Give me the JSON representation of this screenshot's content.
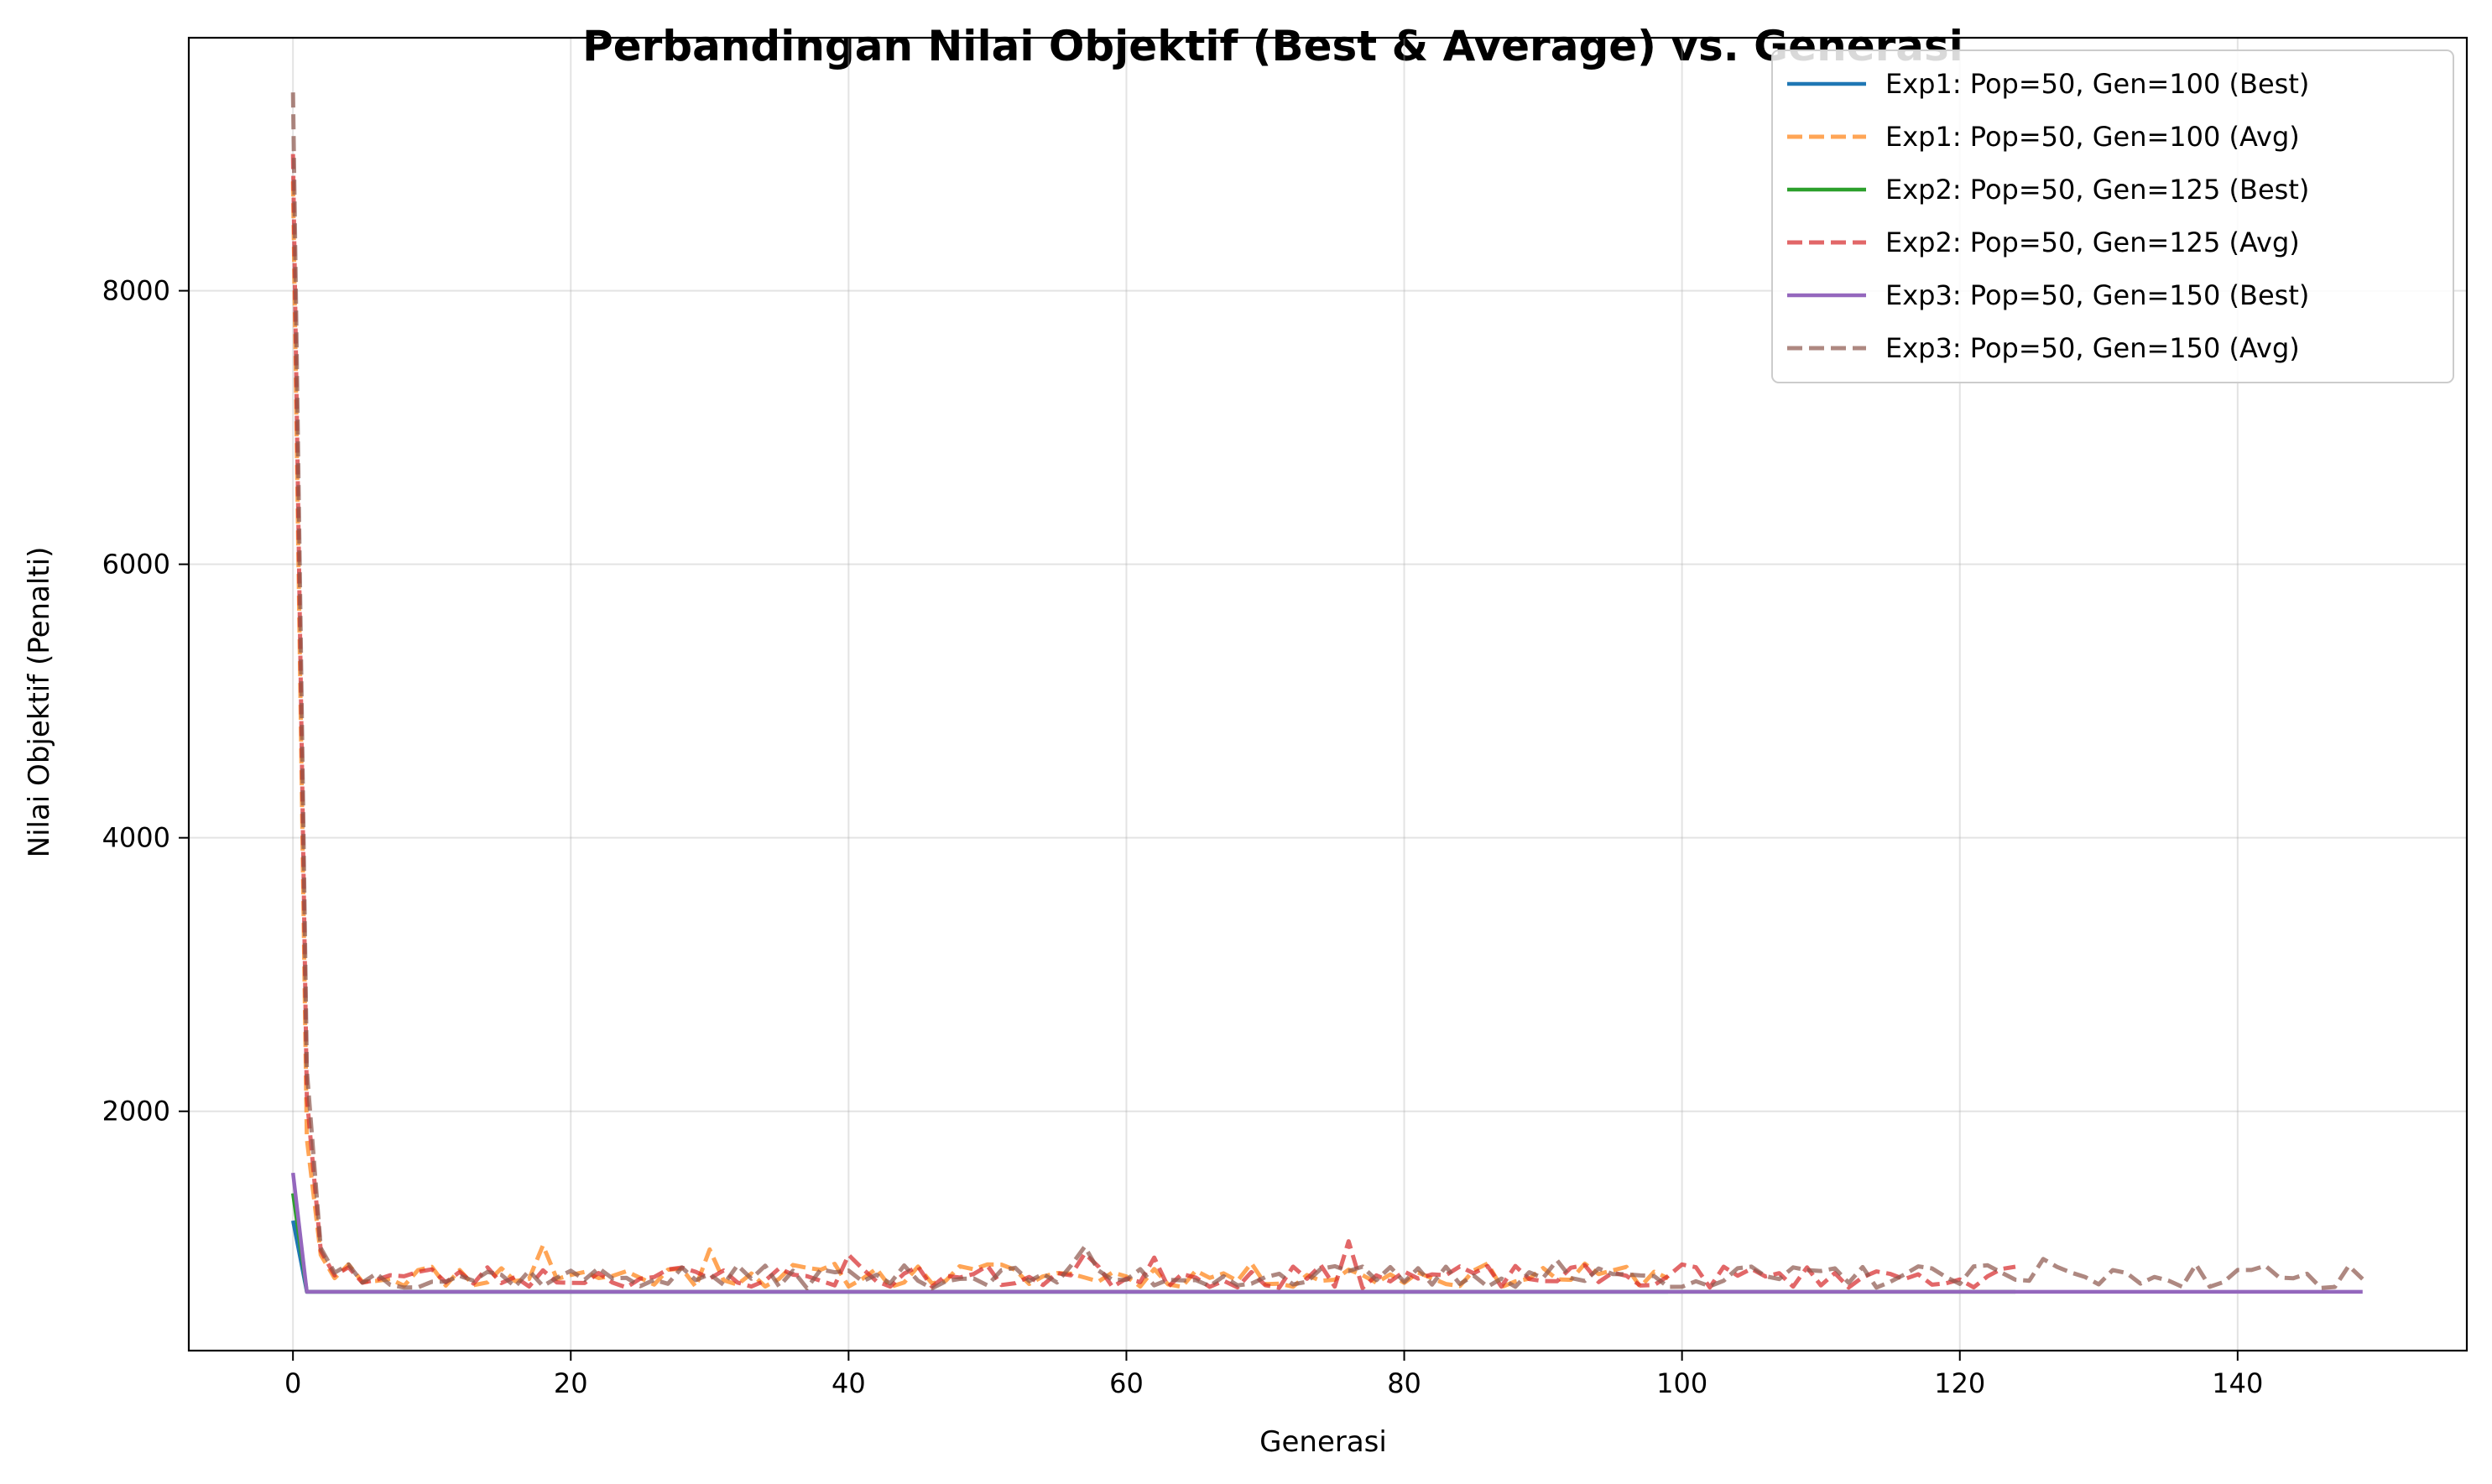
{
  "chart_data": {
    "type": "line",
    "title": "Perbandingan Nilai Objektif (Best & Average) vs. Generasi",
    "xlabel": "Generasi",
    "ylabel": "Nilai Objektif (Penalti)",
    "xlim": [
      -7.5,
      156.5
    ],
    "ylim": [
      250,
      9850
    ],
    "xticks": [
      0,
      20,
      40,
      60,
      80,
      100,
      120,
      140
    ],
    "yticks": [
      2000,
      4000,
      6000,
      8000
    ],
    "grid": true,
    "legend_position": "top-right",
    "series": [
      {
        "name": "Exp1: Pop=50, Gen=100 (Best)",
        "color": "#1f77b4",
        "style": "solid",
        "generations": 100,
        "start_values": [
          1200,
          680
        ],
        "steady_value": 680
      },
      {
        "name": "Exp1: Pop=50, Gen=100 (Avg)",
        "color": "#ff7f0e",
        "style": "dashed",
        "generations": 100,
        "start_values": [
          8800,
          1800,
          950,
          780,
          880
        ],
        "steady_value": 800,
        "noise": 90,
        "spikes": [
          [
            18,
            1020
          ],
          [
            30,
            990
          ],
          [
            50,
            880
          ]
        ],
        "seed": 11
      },
      {
        "name": "Exp2: Pop=50, Gen=125 (Best)",
        "color": "#2ca02c",
        "style": "solid",
        "generations": 125,
        "start_values": [
          1400,
          680
        ],
        "steady_value": 680
      },
      {
        "name": "Exp2: Pop=50, Gen=125 (Avg)",
        "color": "#d62728",
        "style": "dashed",
        "generations": 125,
        "start_values": [
          9000,
          2100,
          980,
          800,
          860
        ],
        "steady_value": 790,
        "noise": 85,
        "spikes": [
          [
            40,
            950
          ],
          [
            57,
            960
          ],
          [
            62,
            930
          ],
          [
            76,
            1050
          ],
          [
            100,
            880
          ]
        ],
        "seed": 23
      },
      {
        "name": "Exp3: Pop=50, Gen=150 (Best)",
        "color": "#9467bd",
        "style": "solid",
        "generations": 150,
        "start_values": [
          1550,
          680
        ],
        "steady_value": 680
      },
      {
        "name": "Exp3: Pop=50, Gen=150 (Avg)",
        "color": "#8c564b",
        "style": "dashed",
        "generations": 150,
        "start_values": [
          9450,
          2300,
          1000,
          820,
          880
        ],
        "steady_value": 790,
        "noise": 85,
        "spikes": [
          [
            57,
            1010
          ],
          [
            91,
            910
          ],
          [
            126,
            920
          ],
          [
            137,
            880
          ],
          [
            148,
            870
          ]
        ],
        "seed": 37
      }
    ]
  }
}
